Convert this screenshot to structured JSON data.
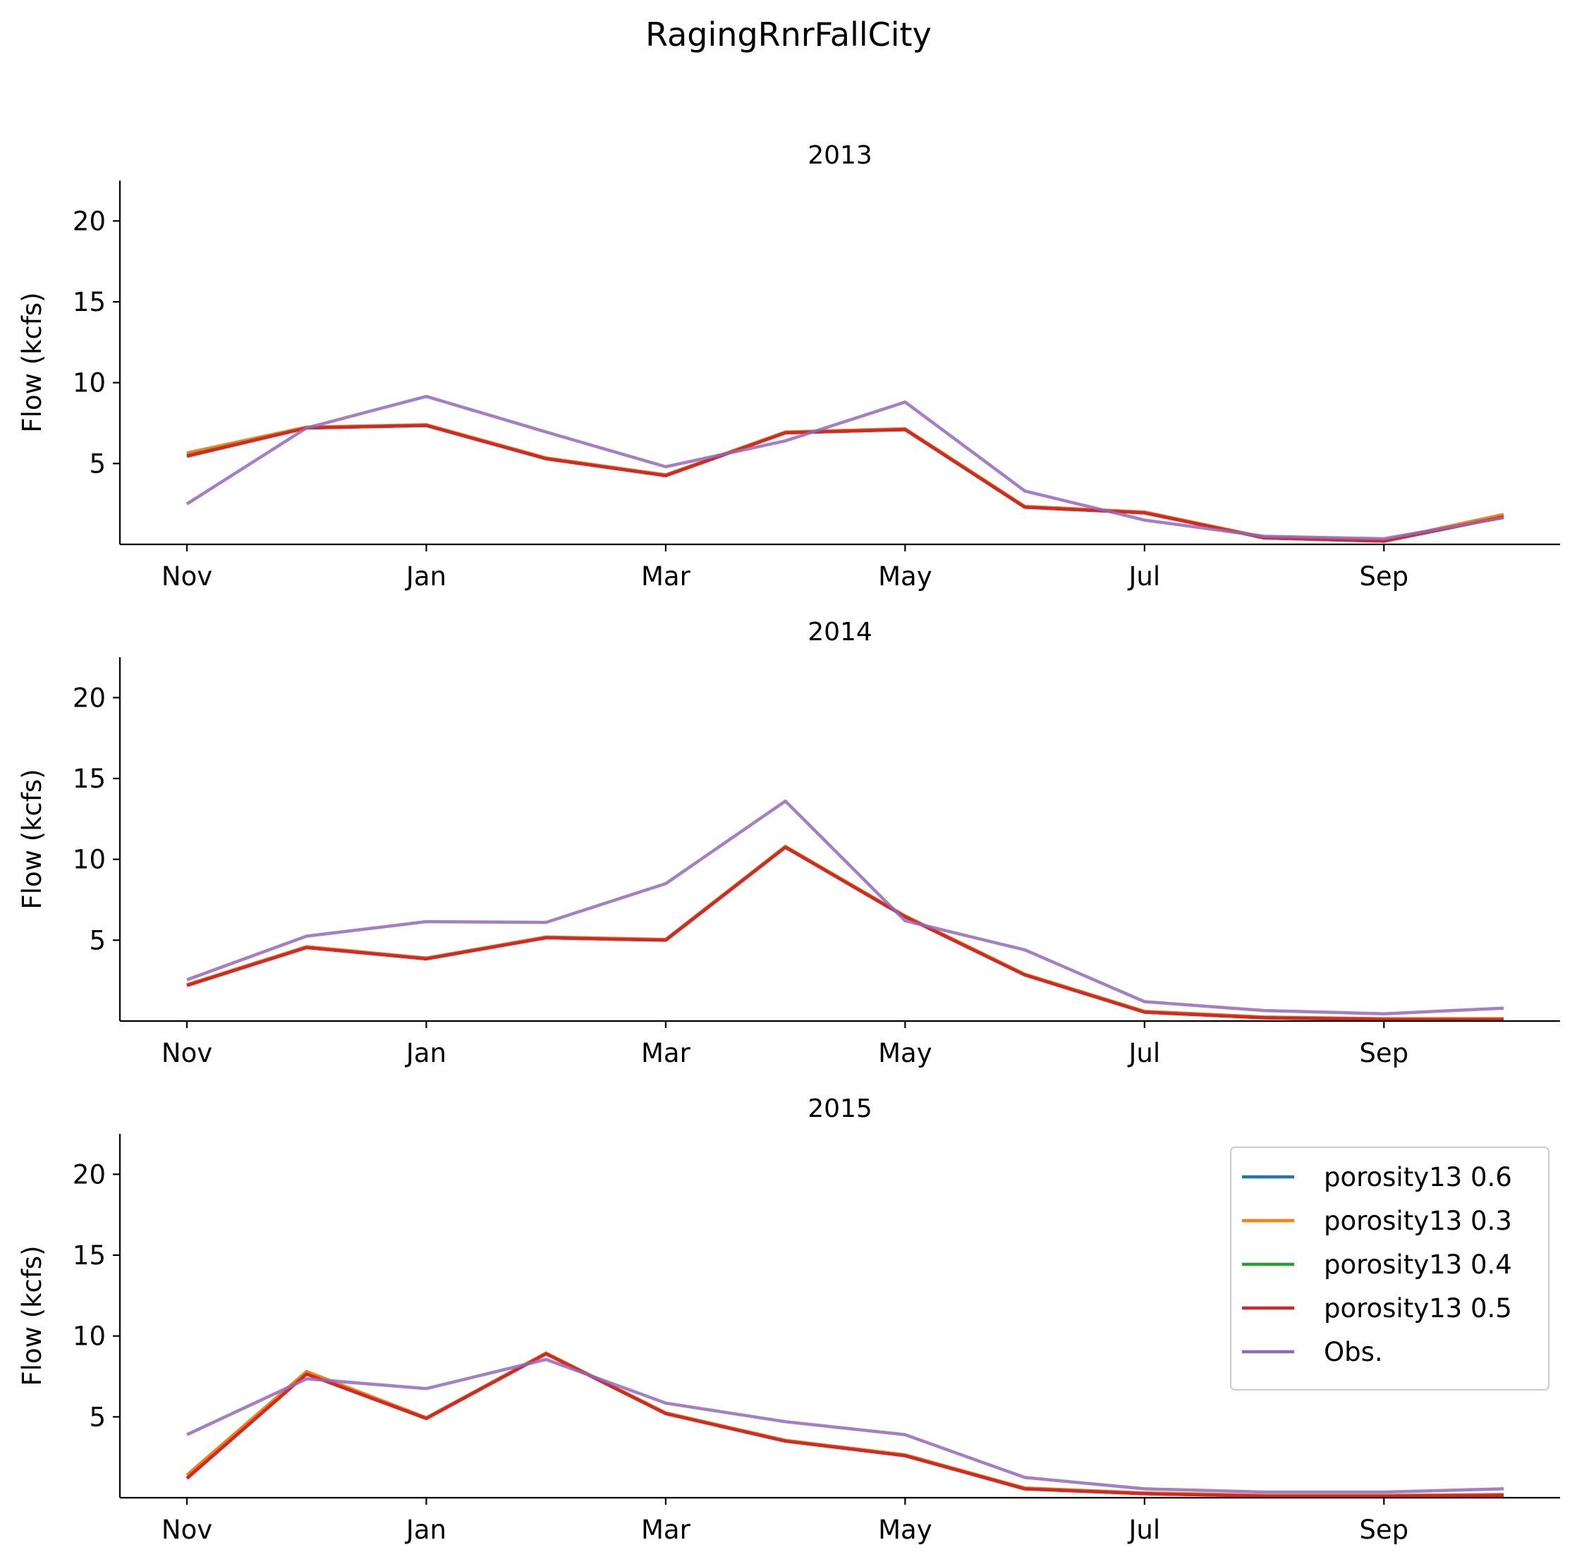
{
  "chart_data": {
    "type": "line",
    "title": "RagingRnrFallCity",
    "legend": {
      "placement": "top-right",
      "panel": 2,
      "entries": [
        "porosity13 0.6",
        "porosity13 0.3",
        "porosity13 0.4",
        "porosity13 0.5",
        "Obs."
      ]
    },
    "x_ticks": [
      {
        "label": "Nov",
        "month_index": 0
      },
      {
        "label": "Jan",
        "month_index": 2
      },
      {
        "label": "Mar",
        "month_index": 4
      },
      {
        "label": "May",
        "month_index": 6
      },
      {
        "label": "Jul",
        "month_index": 8
      },
      {
        "label": "Sep",
        "month_index": 10
      }
    ],
    "months": [
      "Nov",
      "Dec",
      "Jan",
      "Feb",
      "Mar",
      "Apr",
      "May",
      "Jun",
      "Jul",
      "Aug",
      "Sep",
      "Oct"
    ],
    "ylabel": "Flow (kcfs)",
    "ylim": [
      0,
      22.5
    ],
    "y_ticks": [
      5,
      10,
      15,
      20
    ],
    "grid": false,
    "panels": [
      {
        "title": "2013",
        "series": [
          {
            "name": "porosity13 0.6",
            "color": "#1f77b4",
            "values": [
              5.5,
              7.2,
              7.35,
              5.3,
              4.25,
              6.9,
              7.1,
              2.3,
              1.95,
              0.4,
              0.2,
              1.7
            ]
          },
          {
            "name": "porosity13 0.3",
            "color": "#ff7f0e",
            "values": [
              5.65,
              7.25,
              7.4,
              5.35,
              4.3,
              6.95,
              7.15,
              2.35,
              2.0,
              0.45,
              0.25,
              1.85
            ]
          },
          {
            "name": "porosity13 0.4",
            "color": "#2ca02c",
            "values": [
              5.5,
              7.2,
              7.35,
              5.3,
              4.25,
              6.9,
              7.1,
              2.3,
              1.95,
              0.4,
              0.2,
              1.7
            ]
          },
          {
            "name": "porosity13 0.5",
            "color": "#d62728",
            "values": [
              5.45,
              7.2,
              7.35,
              5.3,
              4.25,
              6.9,
              7.1,
              2.3,
              1.95,
              0.4,
              0.2,
              1.7
            ]
          },
          {
            "name": "Obs.",
            "color": "#9467bd",
            "values": [
              2.5,
              7.2,
              9.15,
              6.95,
              4.8,
              6.4,
              8.8,
              3.3,
              1.5,
              0.5,
              0.35,
              1.65
            ]
          }
        ]
      },
      {
        "title": "2014",
        "series": [
          {
            "name": "porosity13 0.6",
            "color": "#1f77b4",
            "values": [
              2.2,
              4.55,
              3.85,
              5.15,
              5.0,
              10.75,
              6.45,
              2.85,
              0.55,
              0.2,
              0.1,
              0.1
            ]
          },
          {
            "name": "porosity13 0.3",
            "color": "#ff7f0e",
            "values": [
              2.25,
              4.6,
              3.9,
              5.2,
              5.05,
              10.8,
              6.5,
              2.9,
              0.6,
              0.25,
              0.15,
              0.15
            ]
          },
          {
            "name": "porosity13 0.4",
            "color": "#2ca02c",
            "values": [
              2.2,
              4.55,
              3.85,
              5.15,
              5.0,
              10.75,
              6.45,
              2.85,
              0.55,
              0.2,
              0.1,
              0.1
            ]
          },
          {
            "name": "porosity13 0.5",
            "color": "#d62728",
            "values": [
              2.2,
              4.55,
              3.85,
              5.15,
              5.0,
              10.75,
              6.45,
              2.85,
              0.55,
              0.2,
              0.1,
              0.1
            ]
          },
          {
            "name": "Obs.",
            "color": "#9467bd",
            "values": [
              2.55,
              5.25,
              6.15,
              6.1,
              8.5,
              13.6,
              6.2,
              4.4,
              1.2,
              0.65,
              0.45,
              0.8
            ]
          }
        ]
      },
      {
        "title": "2015",
        "series": [
          {
            "name": "porosity13 0.6",
            "color": "#1f77b4",
            "values": [
              1.2,
              7.65,
              4.9,
              8.9,
              5.2,
              3.5,
              2.6,
              0.55,
              0.25,
              0.1,
              0.1,
              0.15
            ]
          },
          {
            "name": "porosity13 0.3",
            "color": "#ff7f0e",
            "values": [
              1.4,
              7.8,
              4.95,
              8.95,
              5.25,
              3.55,
              2.65,
              0.6,
              0.3,
              0.15,
              0.15,
              0.2
            ]
          },
          {
            "name": "porosity13 0.4",
            "color": "#2ca02c",
            "values": [
              1.2,
              7.65,
              4.9,
              8.9,
              5.2,
              3.5,
              2.6,
              0.55,
              0.25,
              0.1,
              0.1,
              0.15
            ]
          },
          {
            "name": "porosity13 0.5",
            "color": "#d62728",
            "values": [
              1.2,
              7.65,
              4.9,
              8.9,
              5.2,
              3.5,
              2.6,
              0.55,
              0.25,
              0.1,
              0.1,
              0.15
            ]
          },
          {
            "name": "Obs.",
            "color": "#9467bd",
            "values": [
              3.9,
              7.35,
              6.75,
              8.55,
              5.85,
              4.7,
              3.9,
              1.25,
              0.55,
              0.35,
              0.35,
              0.55
            ]
          }
        ]
      }
    ]
  }
}
